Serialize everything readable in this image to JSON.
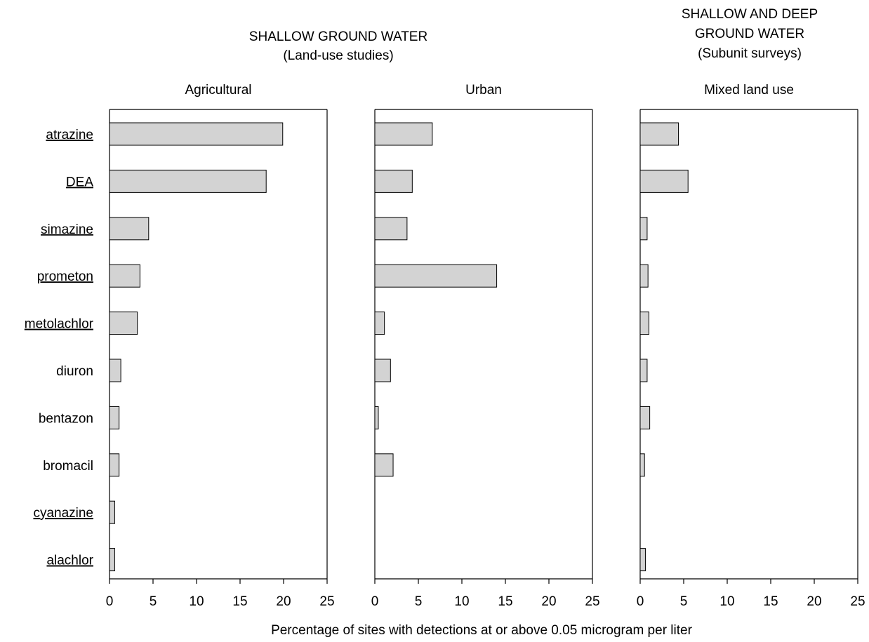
{
  "headers": {
    "group1_line1": "SHALLOW GROUND WATER",
    "group1_line2": "(Land-use studies)",
    "group2_line1": "SHALLOW AND DEEP",
    "group2_line2": "GROUND WATER",
    "group2_line3": "(Subunit surveys)"
  },
  "xlabel": "Percentage of sites with detections at or above 0.05 microgram per liter",
  "chart_data": {
    "type": "bar",
    "orientation": "horizontal",
    "categories": [
      "atrazine",
      "DEA",
      "simazine",
      "prometon",
      "metolachlor",
      "diuron",
      "bentazon",
      "bromacil",
      "cyanazine",
      "alachlor"
    ],
    "underlined_categories": [
      "atrazine",
      "DEA",
      "simazine",
      "prometon",
      "metolachlor",
      "cyanazine",
      "alachlor"
    ],
    "xlim": [
      0,
      25
    ],
    "xticks": [
      0,
      5,
      10,
      15,
      20,
      25
    ],
    "xlabel": "Percentage of sites with detections at or above 0.05 microgram per liter",
    "bar_color": "#d3d3d3",
    "grid": false,
    "panels": [
      {
        "title": "Agricultural",
        "values": [
          19.9,
          18.0,
          4.5,
          3.5,
          3.2,
          1.3,
          1.1,
          1.1,
          0.6,
          0.6
        ]
      },
      {
        "title": "Urban",
        "values": [
          6.6,
          4.3,
          3.7,
          14.0,
          1.1,
          1.8,
          0.4,
          2.1,
          0.0,
          0.0
        ]
      },
      {
        "title": "Mixed land use",
        "values": [
          4.4,
          5.5,
          0.8,
          0.9,
          1.0,
          0.8,
          1.1,
          0.5,
          0.0,
          0.6
        ]
      }
    ]
  }
}
